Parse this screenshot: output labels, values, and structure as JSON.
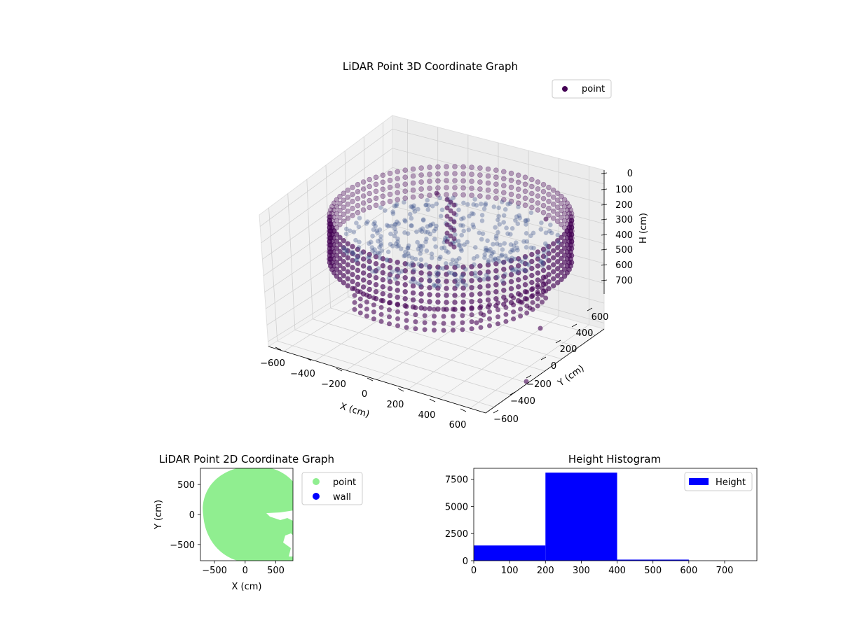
{
  "colors": {
    "point3d": "#440154",
    "point2d": "#90ee90",
    "wall": "#0000ff",
    "hist": "#0000ff",
    "pane": "#f2f2f2",
    "grid": "#d0d0d0"
  },
  "chart_data": [
    {
      "id": "scatter3d",
      "type": "scatter",
      "title": "LiDAR Point 3D Coordinate Graph",
      "xlabel": "X (cm)",
      "ylabel": "Y (cm)",
      "zlabel": "H (cm)",
      "legend": [
        "point"
      ],
      "legend_position": "top-right",
      "grid": true,
      "x_ticks": [
        "−600",
        "−400",
        "−200",
        "0",
        "200",
        "400",
        "600"
      ],
      "y_ticks": [
        "−600",
        "−400",
        "−200",
        "0",
        "200",
        "400",
        "600"
      ],
      "z_ticks": [
        "0",
        "100",
        "200",
        "300",
        "400",
        "500",
        "600",
        "700"
      ],
      "xlim": [
        -650,
        650
      ],
      "ylim": [
        -650,
        650
      ],
      "zlim": [
        0,
        750
      ],
      "z_inverted": true,
      "shape": "cylindrical wall of points, radius about 650 cm, height about 0 to 350 cm, sparse points down to about 700 cm",
      "point_color": "#440154"
    },
    {
      "id": "scatter2d",
      "type": "scatter",
      "title": "LiDAR Point 2D Coordinate Graph",
      "xlabel": "X (cm)",
      "ylabel": "Y (cm)",
      "x_ticks": [
        "−500",
        "0",
        "500"
      ],
      "y_ticks": [
        "500",
        "0",
        "−500"
      ],
      "xlim": [
        -730,
        780
      ],
      "ylim": [
        -770,
        770
      ],
      "series": [
        {
          "name": "point",
          "color": "#90ee90"
        },
        {
          "name": "wall",
          "color": "#0000ff"
        }
      ],
      "legend_position": "outside right"
    },
    {
      "id": "histogram",
      "type": "bar",
      "title": "Height Histogram",
      "legend": [
        "Height"
      ],
      "legend_position": "top-right",
      "bins": [
        {
          "x0": 0,
          "x1": 200,
          "count": 1400
        },
        {
          "x0": 200,
          "x1": 400,
          "count": 8100
        },
        {
          "x0": 400,
          "x1": 600,
          "count": 100
        },
        {
          "x0": 600,
          "x1": 790,
          "count": 5
        }
      ],
      "xlim": [
        0,
        790
      ],
      "ylim": [
        0,
        8500
      ],
      "x_ticks": [
        "0",
        "100",
        "200",
        "300",
        "400",
        "500",
        "600",
        "700"
      ],
      "y_ticks": [
        "0",
        "2500",
        "5000",
        "7500"
      ],
      "bar_color": "#0000ff"
    }
  ]
}
